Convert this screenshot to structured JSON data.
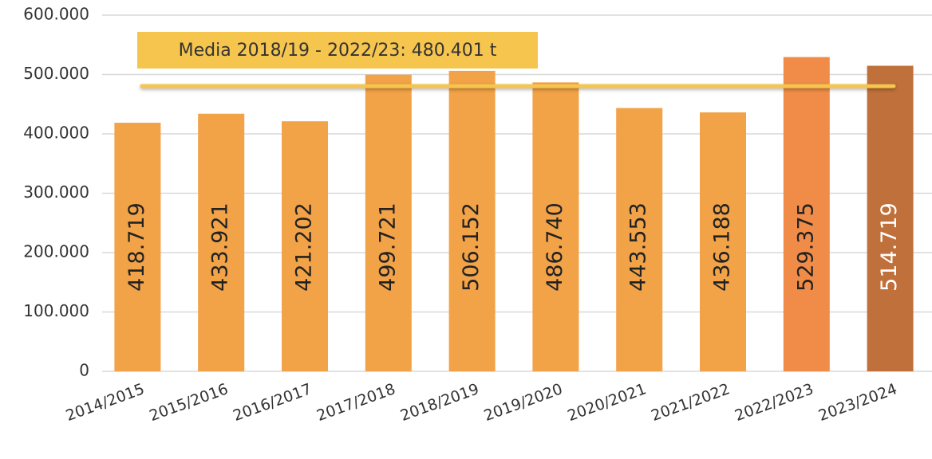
{
  "chart_data": {
    "type": "bar",
    "categories": [
      "2014/2015",
      "2015/2016",
      "2016/2017",
      "2017/2018",
      "2018/2019",
      "2019/2020",
      "2020/2021",
      "2021/2022",
      "2022/2023",
      "2023/2024"
    ],
    "values": [
      418719,
      433921,
      421202,
      499721,
      506152,
      486740,
      443553,
      436188,
      529375,
      514719
    ],
    "value_labels": [
      "418.719",
      "433.921",
      "421.202",
      "499.721",
      "506.152",
      "486.740",
      "443.553",
      "436.188",
      "529.375",
      "514.719"
    ],
    "colors": [
      "#f2a247",
      "#f2a247",
      "#f2a247",
      "#f2a247",
      "#f2a247",
      "#f2a247",
      "#f2a247",
      "#f2a247",
      "#f08c48",
      "#c0703a"
    ],
    "value_label_colors": [
      "#222222",
      "#222222",
      "#222222",
      "#222222",
      "#222222",
      "#222222",
      "#222222",
      "#222222",
      "#222222",
      "#ffffff"
    ],
    "ylim": [
      0,
      600000
    ],
    "yticks": [
      0,
      {
        "value": 100000,
        "label": "100.000"
      },
      {
        "value": 200000,
        "label": "200.000"
      },
      {
        "value": 300000,
        "label": "300.000"
      },
      {
        "value": 400000,
        "label": "400.000"
      },
      {
        "value": 500000,
        "label": "500.000"
      },
      {
        "value": 600000,
        "label": "600.000"
      }
    ],
    "grid": true,
    "mean_line": {
      "value": 480401,
      "label": "Media 2018/19 - 2022/23: 480.401 t",
      "color": "#f5c54e"
    }
  }
}
